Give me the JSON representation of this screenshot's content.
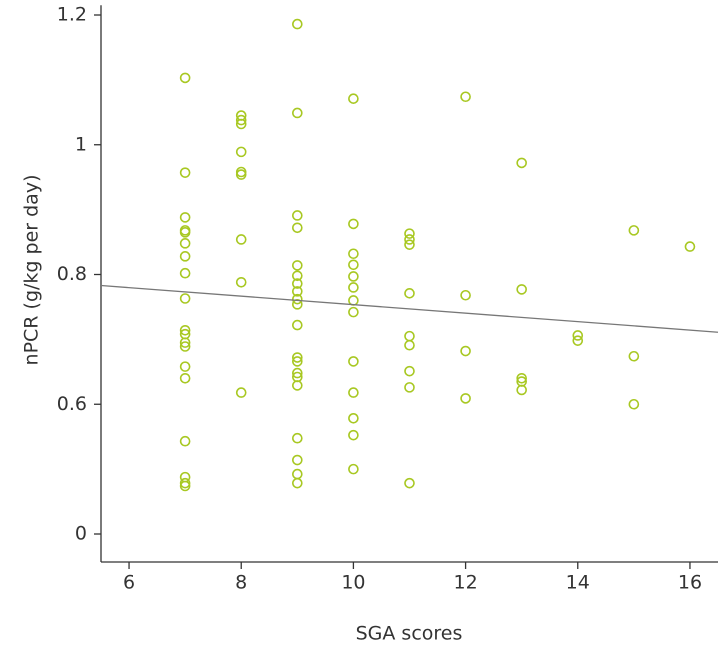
{
  "chart_data": {
    "type": "scatter",
    "xlabel": "SGA scores",
    "ylabel": "nPCR (g/kg per day)",
    "xlim": [
      5.5,
      16.5
    ],
    "xticks": [
      6,
      8,
      10,
      12,
      14,
      16
    ],
    "ylim": [
      -0.13,
      1.215
    ],
    "yticks": [
      0,
      0.6,
      0.8,
      1.0,
      1.2
    ],
    "y_scale": "tick-spaced",
    "series": [
      {
        "color": "#a8c822",
        "x": [
          7,
          7,
          7,
          7,
          7,
          7,
          7,
          7,
          7,
          7,
          7,
          7,
          7,
          7,
          7,
          7,
          7,
          7,
          7,
          8,
          8,
          8,
          8,
          8,
          8,
          8,
          8,
          8,
          9,
          9,
          9,
          9,
          9,
          9,
          9,
          9,
          9,
          9,
          9,
          9,
          9,
          9,
          9,
          9,
          9,
          9,
          9,
          9,
          10,
          10,
          10,
          10,
          10,
          10,
          10,
          10,
          10,
          10,
          10,
          10,
          10,
          11,
          11,
          11,
          11,
          11,
          11,
          11,
          11,
          11,
          12,
          12,
          12,
          12,
          13,
          13,
          13,
          13,
          13,
          14,
          14,
          15,
          15,
          15,
          16
        ],
        "values": [
          1.103,
          0.957,
          0.888,
          0.868,
          0.865,
          0.848,
          0.828,
          0.802,
          0.763,
          0.714,
          0.708,
          0.695,
          0.689,
          0.658,
          0.64,
          0.429,
          0.263,
          0.235,
          0.222,
          1.045,
          1.038,
          1.032,
          0.989,
          0.958,
          0.954,
          0.854,
          0.788,
          0.618,
          1.186,
          1.049,
          0.891,
          0.872,
          0.814,
          0.798,
          0.786,
          0.774,
          0.762,
          0.754,
          0.722,
          0.672,
          0.666,
          0.648,
          0.642,
          0.629,
          0.443,
          0.342,
          0.277,
          0.235,
          1.071,
          0.878,
          0.832,
          0.815,
          0.797,
          0.78,
          0.76,
          0.742,
          0.666,
          0.618,
          0.535,
          0.457,
          0.3,
          0.863,
          0.854,
          0.846,
          0.771,
          0.705,
          0.691,
          0.651,
          0.626,
          0.235,
          1.074,
          0.768,
          0.682,
          0.609,
          0.972,
          0.777,
          0.64,
          0.635,
          0.622,
          0.706,
          0.698,
          0.868,
          0.674,
          0.6,
          0.843
        ]
      }
    ],
    "trendline": {
      "color": "#777777",
      "x": [
        5.5,
        16.5
      ],
      "y": [
        0.783,
        0.711
      ]
    }
  }
}
